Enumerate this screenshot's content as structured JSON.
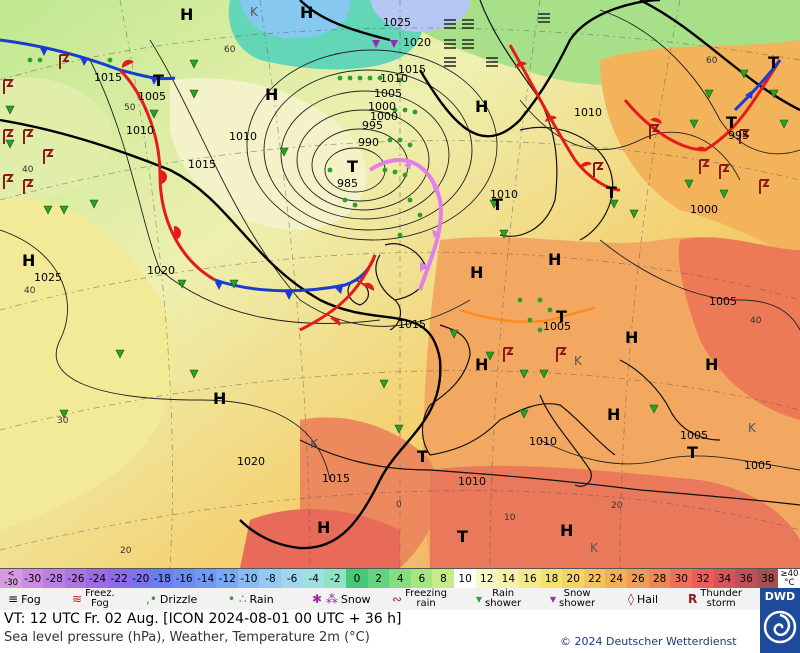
{
  "map": {
    "pressure_labels": [
      {
        "t": "1025"
      },
      {
        "t": "1020"
      },
      {
        "t": "1015"
      },
      {
        "t": "1010"
      },
      {
        "t": "1005"
      },
      {
        "t": "1000"
      },
      {
        "t": "995"
      },
      {
        "t": "990"
      },
      {
        "t": "985"
      },
      {
        "t": "1010"
      },
      {
        "t": "1015"
      },
      {
        "t": "1020"
      },
      {
        "t": "1025"
      },
      {
        "t": "1005"
      },
      {
        "t": "1010"
      },
      {
        "t": "1015"
      },
      {
        "t": "1010"
      },
      {
        "t": "1005"
      },
      {
        "t": "1000"
      },
      {
        "t": "995"
      },
      {
        "t": "1010"
      },
      {
        "t": "1005"
      },
      {
        "t": "1005"
      },
      {
        "t": "1010"
      },
      {
        "t": "1020"
      },
      {
        "t": "1015"
      },
      {
        "t": "1015"
      },
      {
        "t": "1005"
      },
      {
        "t": "1000"
      },
      {
        "t": "1010"
      }
    ],
    "high_symbol": "H",
    "low_symbol": "T",
    "weak_low_symbol": "K",
    "grid_labels": [
      "60",
      "50",
      "40",
      "40",
      "30",
      "20",
      "0",
      "10",
      "20",
      "40",
      "60"
    ],
    "colors": {
      "warm_front": "#e51a1a",
      "cold_front": "#1a3bd4",
      "occluded_front": "#e080e8",
      "convergence_line": "#ff8c1a",
      "rain": "#2aa02a",
      "thunder": "#8b1a1a"
    }
  },
  "scale": {
    "values": [
      "<\n-30",
      "-30",
      "-28",
      "-26",
      "-24",
      "-22",
      "-20",
      "-18",
      "-16",
      "-14",
      "-12",
      "-10",
      "-8",
      "-6",
      "-4",
      "-2",
      "0",
      "2",
      "4",
      "6",
      "8",
      "10",
      "12",
      "14",
      "16",
      "18",
      "20",
      "22",
      "24",
      "26",
      "28",
      "30",
      "32",
      "34",
      "36",
      "38",
      "≥40\n°C"
    ],
    "colors": [
      "#d79ae0",
      "#c98be3",
      "#bb7fe3",
      "#ad74e4",
      "#9d6ce5",
      "#8c6be8",
      "#7b73ec",
      "#6b7ef0",
      "#6b8cf3",
      "#6e9af3",
      "#78aaf3",
      "#86bbf3",
      "#93c9f3",
      "#a1d6ef",
      "#9fe0e0",
      "#8fe2c4",
      "#45c87a",
      "#63d47e",
      "#86dd80",
      "#a6e582",
      "#c5ec87",
      "#ffffff",
      "#f7f7c8",
      "#f7f1a8",
      "#f6ea88",
      "#f5e070",
      "#f5d365",
      "#f4c35d",
      "#f3b058",
      "#f09b56",
      "#ee8656",
      "#ec7257",
      "#e85e58",
      "#d5565a",
      "#bc5158",
      "#a65050",
      "#ffffff"
    ]
  },
  "legend": [
    {
      "icon": "fog-icon",
      "label": "Fog"
    },
    {
      "icon": "freezing-fog-icon",
      "label": "Freez.\nFog"
    },
    {
      "icon": "drizzle-icon",
      "label": "Drizzle"
    },
    {
      "icon": "rain-icon",
      "label": "Rain"
    },
    {
      "icon": "snow-icon",
      "label": "Snow"
    },
    {
      "icon": "freezing-rain-icon",
      "label": "Freezing\nrain"
    },
    {
      "icon": "rain-shower-icon",
      "label": "Rain\nshower"
    },
    {
      "icon": "snow-shower-icon",
      "label": "Snow\nshower"
    },
    {
      "icon": "hail-icon",
      "label": "Hail"
    },
    {
      "icon": "thunderstorm-icon",
      "label": "Thunder\nstorm"
    }
  ],
  "info": {
    "line1": "VT: 12 UTC Fr.  02 Aug. [ICON 2024-08-01  00 UTC + 36 h]",
    "line2": "Sea level pressure (hPa), Weather, Temperature 2m (°C)",
    "copyright": "© 2024 Deutscher Wetterdienst"
  },
  "logo": {
    "text": "DWD"
  }
}
